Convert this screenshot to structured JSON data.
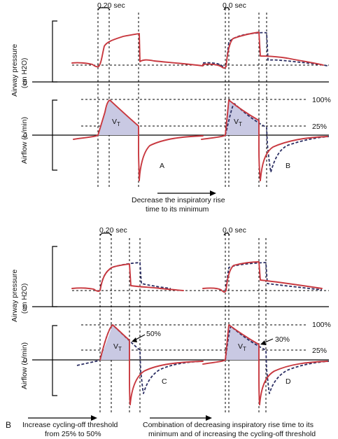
{
  "top": {
    "pressure_axis_label": "Airway pressure",
    "pressure_unit_label": "(cm H2O)",
    "flow_axis_label": "Airflow (L/min)",
    "pressure_zero": "0",
    "flow_zero": "0",
    "rise_time_A": "0.20 sec",
    "rise_time_B": "0.0 sec",
    "pct_high": "100%",
    "pct_low": "25%",
    "tidal_volume": "V",
    "tidal_volume_sub": "T",
    "panel_A": "A",
    "panel_B": "B",
    "caption_line1": "Decrease the inspiratory rise",
    "caption_line2": "time to its minimum"
  },
  "bottom": {
    "pressure_axis_label": "Airway pressure",
    "pressure_unit_label": "(cm H2O)",
    "flow_axis_label": "Airflow (L/min)",
    "pressure_zero": "0",
    "flow_zero": "0",
    "rise_time_C": "0.20 sec",
    "rise_time_D": "0.0 sec",
    "pct_high": "100%",
    "pct_low": "25%",
    "cycle_C": "50%",
    "cycle_D": "30%",
    "tidal_volume": "V",
    "tidal_volume_sub": "T",
    "panel_C": "C",
    "panel_D": "D",
    "caption_left_line1": "Increase cycling-off threshold",
    "caption_left_line2": "from 25% to 50%",
    "caption_right_line1": "Combination of decreasing inspiratory rise time to its",
    "caption_right_line2": "minimum and of increasing the cycling-off threshold"
  },
  "figure_label": "B",
  "colors": {
    "current_waveform": "#c8383f",
    "previous_waveform": "#2b2e63",
    "tidal_volume_fill": "#c9c9e3"
  }
}
